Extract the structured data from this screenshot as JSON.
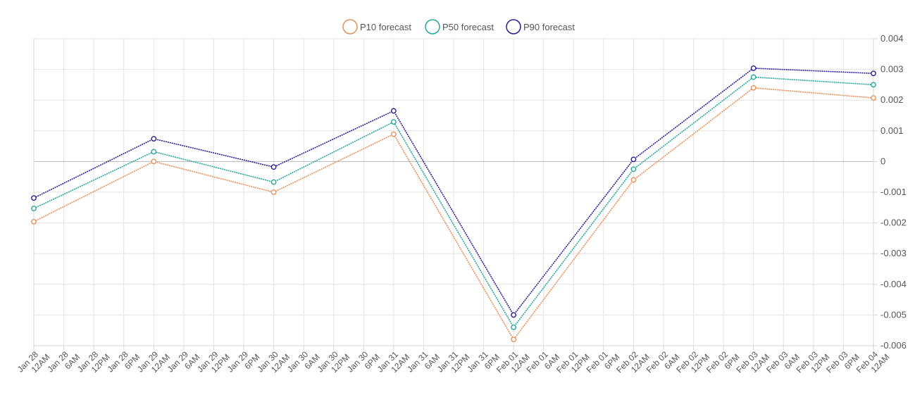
{
  "chart_data": {
    "type": "line",
    "x_ticks": [
      "Jan 28 12AM",
      "Jan 28 6AM",
      "Jan 28 12PM",
      "Jan 28 6PM",
      "Jan 29 12AM",
      "Jan 29 6AM",
      "Jan 29 12PM",
      "Jan 29 6PM",
      "Jan 30 12AM",
      "Jan 30 6AM",
      "Jan 30 12PM",
      "Jan 30 6PM",
      "Jan 31 12AM",
      "Jan 31 6AM",
      "Jan 31 12PM",
      "Jan 31 6PM",
      "Feb 01 12AM",
      "Feb 01 6AM",
      "Feb 01 12PM",
      "Feb 01 6PM",
      "Feb 02 12AM",
      "Feb 02 6AM",
      "Feb 02 12PM",
      "Feb 02 6PM",
      "Feb 03 12AM",
      "Feb 03 6AM",
      "Feb 03 12PM",
      "Feb 03 6PM",
      "Feb 04 12AM"
    ],
    "x": [
      "Jan 28 12AM",
      "Jan 29 12AM",
      "Jan 30 12AM",
      "Jan 31 12AM",
      "Feb 01 12AM",
      "Feb 02 12AM",
      "Feb 03 12AM",
      "Feb 04 12AM"
    ],
    "series": [
      {
        "name": "P10 forecast",
        "color": "#e8915a",
        "values": [
          -0.00196,
          0.0,
          -0.001,
          0.00089,
          -0.0058,
          -0.0006,
          0.0024,
          0.00207
        ]
      },
      {
        "name": "P50 forecast",
        "color": "#26a69a",
        "values": [
          -0.00153,
          0.00032,
          -0.00067,
          0.00129,
          -0.0054,
          -0.00025,
          0.00275,
          0.0025
        ]
      },
      {
        "name": "P90 forecast",
        "color": "#2c1a8f",
        "values": [
          -0.00119,
          0.00074,
          -0.00018,
          0.00165,
          -0.005,
          7e-05,
          0.00304,
          0.00287
        ]
      }
    ],
    "y_ticks": [
      "0.004",
      "0.003",
      "0.002",
      "0.001",
      "0",
      "-0.001",
      "-0.002",
      "-0.003",
      "-0.004",
      "-0.005",
      "-0.006"
    ],
    "ylim": [
      -0.006,
      0.004
    ],
    "y_axis_side": "right",
    "grid": true,
    "legend_position": "top-center",
    "title": "",
    "xlabel": "",
    "ylabel": ""
  }
}
